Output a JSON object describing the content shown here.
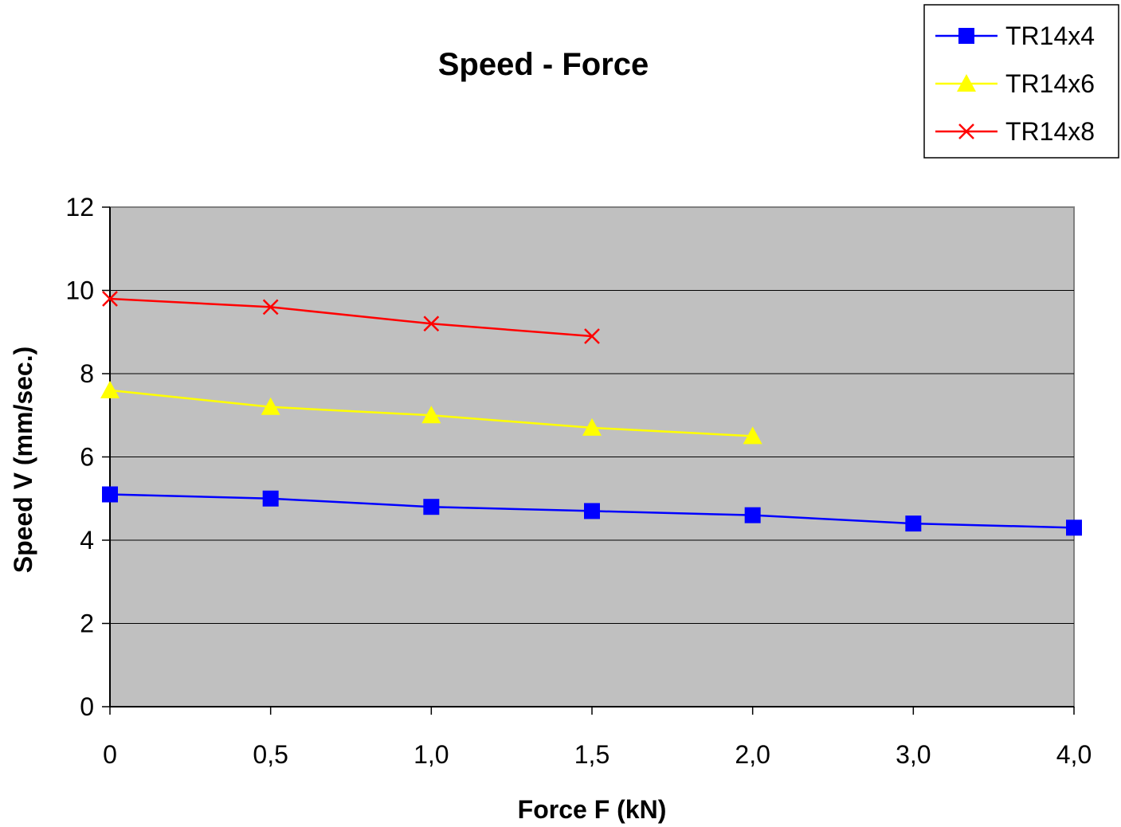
{
  "chart_data": {
    "type": "line",
    "title": "Speed - Force",
    "xlabel": "Force F (kN)",
    "ylabel": "Speed V (mm/sec.)",
    "categories": [
      "0",
      "0,5",
      "1,0",
      "1,5",
      "2,0",
      "3,0",
      "4,0"
    ],
    "ylim": [
      0,
      12
    ],
    "yticks": [
      0,
      2,
      4,
      6,
      8,
      10,
      12
    ],
    "grid": true,
    "legend_position": "top-right",
    "plot_background": "#c0c0c0",
    "series": [
      {
        "name": "TR14x4",
        "color": "#0000ff",
        "marker": "square",
        "values": [
          5.1,
          5.0,
          4.8,
          4.7,
          4.6,
          4.4,
          4.3
        ]
      },
      {
        "name": "TR14x6",
        "color": "#ffff00",
        "marker": "triangle",
        "values": [
          7.6,
          7.2,
          7.0,
          6.7,
          6.5,
          null,
          null
        ]
      },
      {
        "name": "TR14x8",
        "color": "#ff0000",
        "marker": "x",
        "values": [
          9.8,
          9.6,
          9.2,
          8.9,
          null,
          null,
          null
        ]
      }
    ]
  }
}
